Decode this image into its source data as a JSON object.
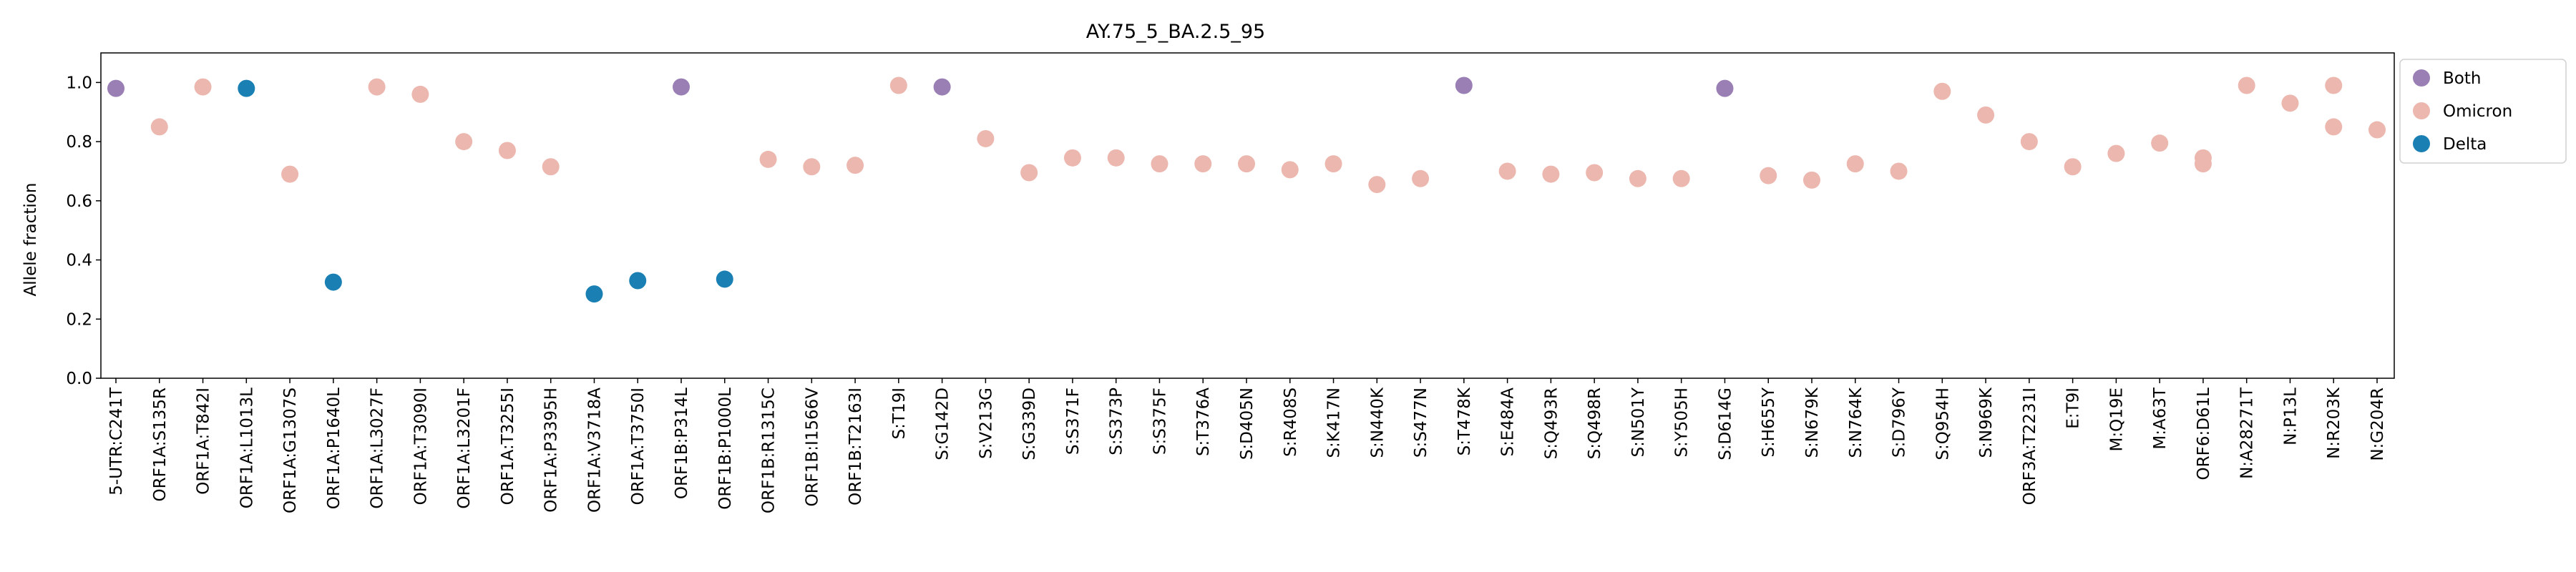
{
  "chart_data": {
    "type": "scatter",
    "title": "AY.75_5_BA.2.5_95",
    "xlabel": "",
    "ylabel": "Allele fraction",
    "ylim": [
      0.0,
      1.1
    ],
    "yticks": [
      "0.0",
      "0.2",
      "0.4",
      "0.6",
      "0.8",
      "1.0"
    ],
    "grid": false,
    "legend_position": "outside-top-right",
    "categories": [
      "5-UTR:C241T",
      "ORF1A:S135R",
      "ORF1A:T842I",
      "ORF1A:L1013L",
      "ORF1A:G1307S",
      "ORF1A:P1640L",
      "ORF1A:L3027F",
      "ORF1A:T3090I",
      "ORF1A:L3201F",
      "ORF1A:T3255I",
      "ORF1A:P3395H",
      "ORF1A:V3718A",
      "ORF1A:T3750I",
      "ORF1B:P314L",
      "ORF1B:P1000L",
      "ORF1B:R1315C",
      "ORF1B:I1566V",
      "ORF1B:T2163I",
      "S:T19I",
      "S:G142D",
      "S:V213G",
      "S:G339D",
      "S:S371F",
      "S:S373P",
      "S:S375F",
      "S:T376A",
      "S:D405N",
      "S:R408S",
      "S:K417N",
      "S:N440K",
      "S:S477N",
      "S:T478K",
      "S:E484A",
      "S:Q493R",
      "S:Q498R",
      "S:N501Y",
      "S:Y505H",
      "S:D614G",
      "S:H655Y",
      "S:N679K",
      "S:N764K",
      "S:D796Y",
      "S:Q954H",
      "S:N969K",
      "ORF3A:T2231I",
      "E:T9I",
      "M:Q19E",
      "M:A63T",
      "ORF6:D61L",
      "N:A28271T",
      "N:P13L",
      "N:R203K",
      "N:G204R"
    ],
    "series": [
      {
        "name": "Both",
        "color": "#9a7fb5",
        "points": [
          {
            "x": "5-UTR:C241T",
            "y": 0.98
          },
          {
            "x": "ORF1B:P314L",
            "y": 0.985
          },
          {
            "x": "S:G142D",
            "y": 0.985
          },
          {
            "x": "S:T478K",
            "y": 0.99
          },
          {
            "x": "S:D614G",
            "y": 0.98
          }
        ]
      },
      {
        "name": "Omicron",
        "color": "#ecb7ae",
        "points": [
          {
            "x": "ORF1A:S135R",
            "y": 0.85
          },
          {
            "x": "ORF1A:T842I",
            "y": 0.985
          },
          {
            "x": "ORF1A:G1307S",
            "y": 0.69
          },
          {
            "x": "ORF1A:L3027F",
            "y": 0.985
          },
          {
            "x": "ORF1A:T3090I",
            "y": 0.96
          },
          {
            "x": "ORF1A:L3201F",
            "y": 0.8
          },
          {
            "x": "ORF1A:T3255I",
            "y": 0.77
          },
          {
            "x": "ORF1A:P3395H",
            "y": 0.715
          },
          {
            "x": "ORF1B:R1315C",
            "y": 0.74
          },
          {
            "x": "ORF1B:I1566V",
            "y": 0.715
          },
          {
            "x": "ORF1B:T2163I",
            "y": 0.72
          },
          {
            "x": "S:T19I",
            "y": 0.99
          },
          {
            "x": "S:V213G",
            "y": 0.81
          },
          {
            "x": "S:G339D",
            "y": 0.695
          },
          {
            "x": "S:S371F",
            "y": 0.745
          },
          {
            "x": "S:S373P",
            "y": 0.745
          },
          {
            "x": "S:S375F",
            "y": 0.725
          },
          {
            "x": "S:T376A",
            "y": 0.725
          },
          {
            "x": "S:D405N",
            "y": 0.725
          },
          {
            "x": "S:R408S",
            "y": 0.705
          },
          {
            "x": "S:K417N",
            "y": 0.725
          },
          {
            "x": "S:N440K",
            "y": 0.655
          },
          {
            "x": "S:S477N",
            "y": 0.675
          },
          {
            "x": "S:E484A",
            "y": 0.7
          },
          {
            "x": "S:Q493R",
            "y": 0.69
          },
          {
            "x": "S:Q498R",
            "y": 0.695
          },
          {
            "x": "S:N501Y",
            "y": 0.675
          },
          {
            "x": "S:Y505H",
            "y": 0.675
          },
          {
            "x": "S:H655Y",
            "y": 0.685
          },
          {
            "x": "S:N679K",
            "y": 0.67
          },
          {
            "x": "S:N764K",
            "y": 0.725
          },
          {
            "x": "S:D796Y",
            "y": 0.7
          },
          {
            "x": "S:Q954H",
            "y": 0.97
          },
          {
            "x": "S:N969K",
            "y": 0.89
          },
          {
            "x": "ORF3A:T2231I",
            "y": 0.8
          },
          {
            "x": "E:T9I",
            "y": 0.715
          },
          {
            "x": "M:Q19E",
            "y": 0.76
          },
          {
            "x": "M:A63T",
            "y": 0.795
          },
          {
            "x": "ORF6:D61L",
            "y": 0.745
          },
          {
            "x": "ORF6:D61L",
            "y": 0.725
          },
          {
            "x": "N:A28271T",
            "y": 0.99
          },
          {
            "x": "N:P13L",
            "y": 0.93
          },
          {
            "x": "N:R203K",
            "y": 0.99
          },
          {
            "x": "N:R203K",
            "y": 0.85
          },
          {
            "x": "N:G204R",
            "y": 0.84
          }
        ]
      },
      {
        "name": "Delta",
        "color": "#1a80b3",
        "points": [
          {
            "x": "ORF1A:L1013L",
            "y": 0.98
          },
          {
            "x": "ORF1A:P1640L",
            "y": 0.325
          },
          {
            "x": "ORF1A:V3718A",
            "y": 0.285
          },
          {
            "x": "ORF1A:T3750I",
            "y": 0.33
          },
          {
            "x": "ORF1B:P1000L",
            "y": 0.335
          }
        ]
      }
    ]
  }
}
